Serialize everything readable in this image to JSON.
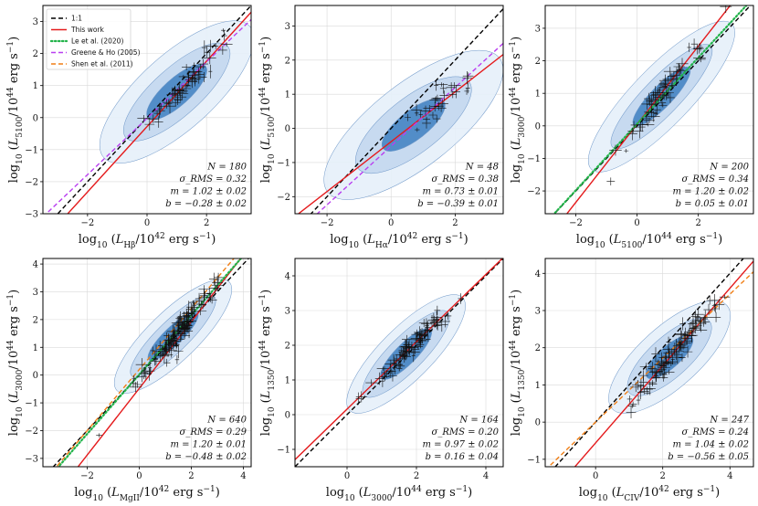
{
  "figure": {
    "description_text": ""
  },
  "legend": {
    "entries": [
      {
        "label": "1:1",
        "color": "#000000",
        "dash": "dash"
      },
      {
        "label": "This work",
        "color": "#e41a1c",
        "dash": "solid"
      },
      {
        "label": "Le et al. (2020)",
        "color": "#22b34a",
        "dash": "dot"
      },
      {
        "label": "Greene & Ho (2005)",
        "color": "#b93ff0",
        "dash": "dash"
      },
      {
        "label": "Shen et al. (2011)",
        "color": "#f07f17",
        "dash": "dash"
      }
    ]
  },
  "chart_data": [
    {
      "type": "scatter",
      "id": "p1",
      "xlabel": "log10 (L_Hβ / 10^42 erg s^-1)",
      "xlabel_main": "log",
      "xlabel_sub": "10",
      "xlabel_lum": "L",
      "xlabel_lum_sub": "Hβ",
      "xlabel_unit": "/10",
      "xlabel_exp": "42",
      "xlabel_tail": " erg s",
      "xlabel_tail_exp": "−1",
      "ylabel_main": "log",
      "ylabel_sub": "10",
      "ylabel_lum": "L",
      "ylabel_lum_sub": "5100",
      "ylabel_unit": "/10",
      "ylabel_exp": "44",
      "ylabel_tail": " erg s",
      "ylabel_tail_exp": "−1",
      "xlim": [
        -3.5,
        3.5
      ],
      "ylim": [
        -3,
        3.5
      ],
      "xticks": [
        -2,
        0,
        2
      ],
      "yticks": [
        -3,
        -2,
        -1,
        0,
        1,
        2,
        3
      ],
      "xtick_labels": [
        "−2",
        "0",
        "2"
      ],
      "ytick_labels": [
        "−3",
        "−2",
        "−1",
        "0",
        "1",
        "2",
        "3"
      ],
      "stats": [
        "N = 180",
        "σ_RMS = 0.32",
        "m = 1.02 ± 0.02",
        "b = −0.28 ± 0.02"
      ],
      "fit_lines": [
        {
          "name": "1:1",
          "slope": 1.0,
          "intercept": 0.0,
          "color": "#000000",
          "dash": "dash"
        },
        {
          "name": "This work",
          "slope": 1.02,
          "intercept": -0.28,
          "color": "#e41a1c",
          "dash": "solid"
        },
        {
          "name": "Greene & Ho (2005)",
          "slope": 0.88,
          "intercept": -0.02,
          "color": "#b93ff0",
          "dash": "dash"
        }
      ],
      "contour_center": [
        1.0,
        0.8
      ],
      "contour_angle_deg": 42,
      "contour_sizes": [
        [
          3.3,
          1.25
        ],
        [
          2.3,
          0.8
        ],
        [
          1.3,
          0.45
        ]
      ],
      "points_center": [
        1.3,
        1.05
      ],
      "points_spread": [
        0.75,
        0.22
      ],
      "n_points": 60
    },
    {
      "type": "scatter",
      "id": "p2",
      "xlabel_main": "log",
      "xlabel_sub": "10",
      "xlabel_lum": "L",
      "xlabel_lum_sub": "Hα",
      "xlabel_unit": "/10",
      "xlabel_exp": "42",
      "xlabel_tail": " erg s",
      "xlabel_tail_exp": "−1",
      "ylabel_main": "log",
      "ylabel_sub": "10",
      "ylabel_lum": "L",
      "ylabel_lum_sub": "5100",
      "ylabel_unit": "/10",
      "ylabel_exp": "44",
      "ylabel_tail": " erg s",
      "ylabel_tail_exp": "−1",
      "xlim": [
        -3,
        3.5
      ],
      "ylim": [
        -2.5,
        3.6
      ],
      "xticks": [
        -2,
        0,
        2
      ],
      "yticks": [
        -2,
        -1,
        0,
        1,
        2,
        3
      ],
      "xtick_labels": [
        "−2",
        "0",
        "2"
      ],
      "ytick_labels": [
        "−2",
        "−1",
        "0",
        "1",
        "2",
        "3"
      ],
      "stats": [
        "N = 48",
        "σ_RMS = 0.38",
        "m = 0.73 ± 0.01",
        "b = −0.39 ± 0.01"
      ],
      "fit_lines": [
        {
          "name": "1:1",
          "slope": 1.0,
          "intercept": 0.0,
          "color": "#000000",
          "dash": "dash"
        },
        {
          "name": "This work",
          "slope": 0.73,
          "intercept": -0.39,
          "color": "#e41a1c",
          "dash": "solid"
        },
        {
          "name": "Greene & Ho (2005)",
          "slope": 0.86,
          "intercept": -0.52,
          "color": "#b93ff0",
          "dash": "dash"
        }
      ],
      "contour_center": [
        0.7,
        0.1
      ],
      "contour_angle_deg": 38,
      "contour_sizes": [
        [
          3.4,
          1.3
        ],
        [
          2.2,
          0.85
        ],
        [
          1.2,
          0.45
        ]
      ],
      "points_center": [
        1.3,
        0.6
      ],
      "points_spread": [
        0.6,
        0.25
      ],
      "n_points": 30
    },
    {
      "type": "scatter",
      "id": "p3",
      "xlabel_main": "log",
      "xlabel_sub": "10",
      "xlabel_lum": "L",
      "xlabel_lum_sub": "5100",
      "xlabel_unit": "/10",
      "xlabel_exp": "44",
      "xlabel_tail": " erg s",
      "xlabel_tail_exp": "−1",
      "ylabel_main": "log",
      "ylabel_sub": "10",
      "ylabel_lum": "L",
      "ylabel_lum_sub": "3000",
      "ylabel_unit": "/10",
      "ylabel_exp": "44",
      "ylabel_tail": " erg s",
      "ylabel_tail_exp": "−1",
      "xlim": [
        -3,
        3.8
      ],
      "ylim": [
        -2.7,
        3.7
      ],
      "xticks": [
        -2,
        0,
        2
      ],
      "yticks": [
        -2,
        -1,
        0,
        1,
        2,
        3
      ],
      "xtick_labels": [
        "−2",
        "0",
        "2"
      ],
      "ytick_labels": [
        "−2",
        "−1",
        "0",
        "1",
        "2",
        "3"
      ],
      "stats": [
        "N = 200",
        "σ_RMS = 0.34",
        "m = 1.20 ± 0.02",
        "b = 0.05 ± 0.01"
      ],
      "fit_lines": [
        {
          "name": "1:1",
          "slope": 1.0,
          "intercept": 0.0,
          "color": "#000000",
          "dash": "dash"
        },
        {
          "name": "This work",
          "slope": 1.2,
          "intercept": 0.05,
          "color": "#e41a1c",
          "dash": "solid"
        },
        {
          "name": "Le et al. (2020)",
          "slope": 1.02,
          "intercept": 0.06,
          "color": "#22b34a",
          "dash": "dot"
        }
      ],
      "contour_center": [
        0.8,
        0.9
      ],
      "contour_angle_deg": 46,
      "contour_sizes": [
        [
          3.3,
          0.95
        ],
        [
          2.3,
          0.6
        ],
        [
          1.3,
          0.35
        ]
      ],
      "points_center": [
        0.9,
        1.1
      ],
      "points_spread": [
        0.65,
        0.2
      ],
      "n_points": 70
    },
    {
      "type": "scatter",
      "id": "p4",
      "xlabel_main": "log",
      "xlabel_sub": "10",
      "xlabel_lum": "L",
      "xlabel_lum_sub": "MgII",
      "xlabel_unit": "/10",
      "xlabel_exp": "42",
      "xlabel_tail": " erg s",
      "xlabel_tail_exp": "−1",
      "ylabel_main": "log",
      "ylabel_sub": "10",
      "ylabel_lum": "L",
      "ylabel_lum_sub": "3000",
      "ylabel_unit": "/10",
      "ylabel_exp": "44",
      "ylabel_tail": " erg s",
      "ylabel_tail_exp": "−1",
      "xlim": [
        -3.7,
        4.3
      ],
      "ylim": [
        -3.3,
        4.2
      ],
      "xticks": [
        -2,
        0,
        2,
        4
      ],
      "yticks": [
        -3,
        -2,
        -1,
        0,
        1,
        2,
        3,
        4
      ],
      "xtick_labels": [
        "−2",
        "0",
        "2",
        "4"
      ],
      "ytick_labels": [
        "−3",
        "−2",
        "−1",
        "0",
        "1",
        "2",
        "3",
        "4"
      ],
      "stats": [
        "N = 640",
        "σ_RMS = 0.29",
        "m = 1.20 ± 0.01",
        "b = −0.48 ± 0.02"
      ],
      "fit_lines": [
        {
          "name": "1:1",
          "slope": 1.0,
          "intercept": 0.0,
          "color": "#000000",
          "dash": "dash"
        },
        {
          "name": "This work",
          "slope": 1.2,
          "intercept": -0.48,
          "color": "#e41a1c",
          "dash": "solid"
        },
        {
          "name": "Le et al. (2020)",
          "slope": 1.07,
          "intercept": 0.02,
          "color": "#22b34a",
          "dash": "dot"
        },
        {
          "name": "Shen et al. (2011)",
          "slope": 1.1,
          "intercept": 0.2,
          "color": "#f07f17",
          "dash": "dash"
        }
      ],
      "contour_center": [
        1.3,
        1.4
      ],
      "contour_angle_deg": 44,
      "contour_sizes": [
        [
          3.0,
          0.95
        ],
        [
          2.2,
          0.6
        ],
        [
          1.3,
          0.35
        ]
      ],
      "points_center": [
        1.5,
        1.55
      ],
      "points_spread": [
        0.75,
        0.22
      ],
      "n_points": 140
    },
    {
      "type": "scatter",
      "id": "p5",
      "xlabel_main": "log",
      "xlabel_sub": "10",
      "xlabel_lum": "L",
      "xlabel_lum_sub": "3000",
      "xlabel_unit": "/10",
      "xlabel_exp": "44",
      "xlabel_tail": " erg s",
      "xlabel_tail_exp": "−1",
      "ylabel_main": "log",
      "ylabel_sub": "10",
      "ylabel_lum": "L",
      "ylabel_lum_sub": "1350",
      "ylabel_unit": "/10",
      "ylabel_exp": "44",
      "ylabel_tail": " erg s",
      "ylabel_tail_exp": "−1",
      "xlim": [
        -1.5,
        4.5
      ],
      "ylim": [
        -1.5,
        4.5
      ],
      "xticks": [
        0,
        2,
        4
      ],
      "yticks": [
        -1,
        0,
        1,
        2,
        3,
        4
      ],
      "xtick_labels": [
        "0",
        "2",
        "4"
      ],
      "ytick_labels": [
        "−1",
        "0",
        "1",
        "2",
        "3",
        "4"
      ],
      "stats": [
        "N = 164",
        "σ_RMS = 0.20",
        "m = 0.97 ± 0.02",
        "b = 0.16 ± 0.04"
      ],
      "fit_lines": [
        {
          "name": "1:1",
          "slope": 1.0,
          "intercept": 0.0,
          "color": "#000000",
          "dash": "dash"
        },
        {
          "name": "This work",
          "slope": 0.97,
          "intercept": 0.16,
          "color": "#e41a1c",
          "dash": "solid"
        }
      ],
      "contour_center": [
        1.7,
        1.75
      ],
      "contour_angle_deg": 45,
      "contour_sizes": [
        [
          2.3,
          0.75
        ],
        [
          1.7,
          0.5
        ],
        [
          1.0,
          0.3
        ]
      ],
      "points_center": [
        1.9,
        2.0
      ],
      "points_spread": [
        0.6,
        0.15
      ],
      "n_points": 90
    },
    {
      "type": "scatter",
      "id": "p6",
      "xlabel_main": "log",
      "xlabel_sub": "10",
      "xlabel_lum": "L",
      "xlabel_lum_sub": "CIV",
      "xlabel_unit": "/10",
      "xlabel_exp": "42",
      "xlabel_tail": " erg s",
      "xlabel_tail_exp": "−1",
      "ylabel_main": "log",
      "ylabel_sub": "10",
      "ylabel_lum": "L",
      "ylabel_lum_sub": "1350",
      "ylabel_unit": "/10",
      "ylabel_exp": "44",
      "ylabel_tail": " erg s",
      "ylabel_tail_exp": "−1",
      "xlim": [
        -1.5,
        4.7
      ],
      "ylim": [
        -1.2,
        4.4
      ],
      "xticks": [
        0,
        2,
        4
      ],
      "yticks": [
        -1,
        0,
        1,
        2,
        3,
        4
      ],
      "xtick_labels": [
        "0",
        "2",
        "4"
      ],
      "ytick_labels": [
        "−1",
        "0",
        "1",
        "2",
        "3",
        "4"
      ],
      "stats": [
        "N = 247",
        "σ_RMS = 0.24",
        "m = 1.04 ± 0.02",
        "b = −0.56 ± 0.05"
      ],
      "fit_lines": [
        {
          "name": "1:1",
          "slope": 1.0,
          "intercept": 0.0,
          "color": "#000000",
          "dash": "dash"
        },
        {
          "name": "This work",
          "slope": 1.04,
          "intercept": -0.56,
          "color": "#e41a1c",
          "dash": "solid"
        },
        {
          "name": "Shen et al. (2011)",
          "slope": 0.86,
          "intercept": 0.0,
          "color": "#f07f17",
          "dash": "dash"
        }
      ],
      "contour_center": [
        2.2,
        1.75
      ],
      "contour_angle_deg": 42,
      "contour_sizes": [
        [
          2.3,
          0.9
        ],
        [
          1.6,
          0.6
        ],
        [
          0.9,
          0.32
        ]
      ],
      "points_center": [
        2.35,
        1.9
      ],
      "points_spread": [
        0.6,
        0.18
      ],
      "n_points": 110
    }
  ],
  "colors": {
    "contour_outer": "#e6eff9",
    "contour_mid": "#c3d7ee",
    "contour_inner": "#3d7fc1",
    "contour_edge": "#6e97c8",
    "points": "#111111"
  }
}
